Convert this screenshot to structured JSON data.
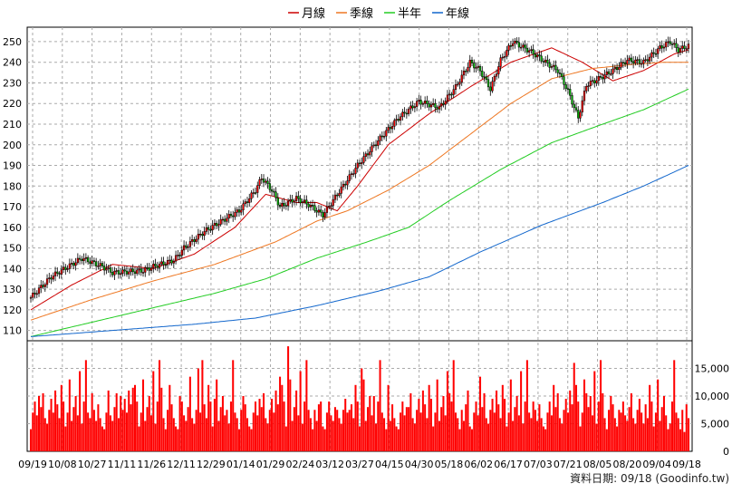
{
  "chart_data": {
    "type": "candlestick",
    "legend": [
      {
        "label": "月線",
        "color": "#cc0000"
      },
      {
        "label": "季線",
        "color": "#ee7722"
      },
      {
        "label": "半年",
        "color": "#22cc22"
      },
      {
        "label": "年線",
        "color": "#1166cc"
      }
    ],
    "price_axis": {
      "min": 105,
      "max": 257,
      "ticks": [
        110,
        120,
        130,
        140,
        150,
        160,
        170,
        180,
        190,
        200,
        210,
        220,
        230,
        240,
        250
      ]
    },
    "volume_axis": {
      "min": 0,
      "max": 20000,
      "ticks": [
        0,
        5000,
        10000,
        15000
      ],
      "tick_labels": [
        "0",
        "5,000",
        "10,000",
        "15,000"
      ]
    },
    "x_labels": [
      "09/19",
      "10/08",
      "10/27",
      "11/11",
      "11/26",
      "12/11",
      "12/29",
      "01/14",
      "01/29",
      "02/24",
      "03/12",
      "03/27",
      "04/15",
      "04/30",
      "05/18",
      "06/02",
      "06/17",
      "07/03",
      "07/21",
      "08/05",
      "08/20",
      "09/04",
      "09/18"
    ],
    "price_anchors": [
      [
        0,
        126
      ],
      [
        10,
        136
      ],
      [
        20,
        142
      ],
      [
        25,
        145
      ],
      [
        35,
        141
      ],
      [
        40,
        138
      ],
      [
        55,
        139
      ],
      [
        60,
        141
      ],
      [
        70,
        144
      ],
      [
        75,
        150
      ],
      [
        85,
        158
      ],
      [
        95,
        164
      ],
      [
        102,
        168
      ],
      [
        110,
        178
      ],
      [
        113,
        184
      ],
      [
        118,
        178
      ],
      [
        122,
        170
      ],
      [
        130,
        174
      ],
      [
        136,
        171
      ],
      [
        143,
        166
      ],
      [
        150,
        176
      ],
      [
        160,
        190
      ],
      [
        170,
        202
      ],
      [
        180,
        213
      ],
      [
        190,
        221
      ],
      [
        200,
        218
      ],
      [
        208,
        228
      ],
      [
        215,
        240
      ],
      [
        220,
        236
      ],
      [
        225,
        227
      ],
      [
        230,
        241
      ],
      [
        236,
        250
      ],
      [
        245,
        245
      ],
      [
        252,
        240
      ],
      [
        258,
        236
      ],
      [
        263,
        226
      ],
      [
        268,
        213
      ],
      [
        272,
        229
      ],
      [
        278,
        232
      ],
      [
        285,
        236
      ],
      [
        292,
        241
      ],
      [
        300,
        240
      ],
      [
        308,
        247
      ],
      [
        313,
        250
      ],
      [
        317,
        246
      ],
      [
        322,
        248
      ]
    ],
    "ma_month": [
      [
        0,
        120
      ],
      [
        20,
        132
      ],
      [
        40,
        142
      ],
      [
        60,
        140
      ],
      [
        80,
        147
      ],
      [
        100,
        160
      ],
      [
        115,
        176
      ],
      [
        130,
        172
      ],
      [
        140,
        172
      ],
      [
        150,
        168
      ],
      [
        160,
        180
      ],
      [
        175,
        200
      ],
      [
        195,
        215
      ],
      [
        215,
        228
      ],
      [
        235,
        240
      ],
      [
        255,
        247
      ],
      [
        270,
        240
      ],
      [
        285,
        231
      ],
      [
        300,
        236
      ],
      [
        315,
        244
      ],
      [
        322,
        246
      ]
    ],
    "ma_quarter": [
      [
        0,
        115
      ],
      [
        30,
        125
      ],
      [
        60,
        134
      ],
      [
        90,
        142
      ],
      [
        120,
        153
      ],
      [
        140,
        163
      ],
      [
        155,
        168
      ],
      [
        175,
        178
      ],
      [
        195,
        190
      ],
      [
        215,
        205
      ],
      [
        235,
        220
      ],
      [
        255,
        232
      ],
      [
        275,
        237
      ],
      [
        295,
        239
      ],
      [
        310,
        240
      ],
      [
        322,
        240
      ]
    ],
    "ma_half": [
      [
        0,
        107
      ],
      [
        30,
        114
      ],
      [
        60,
        121
      ],
      [
        90,
        128
      ],
      [
        115,
        135
      ],
      [
        140,
        145
      ],
      [
        165,
        153
      ],
      [
        185,
        160
      ],
      [
        205,
        173
      ],
      [
        230,
        188
      ],
      [
        255,
        201
      ],
      [
        280,
        210
      ],
      [
        300,
        217
      ],
      [
        322,
        227
      ]
    ],
    "ma_year": [
      [
        0,
        107
      ],
      [
        40,
        110
      ],
      [
        80,
        113
      ],
      [
        110,
        116
      ],
      [
        140,
        122
      ],
      [
        170,
        129
      ],
      [
        195,
        136
      ],
      [
        220,
        148
      ],
      [
        250,
        161
      ],
      [
        280,
        172
      ],
      [
        300,
        180
      ],
      [
        322,
        190
      ]
    ],
    "volume_seed": [
      4000,
      7000,
      9000,
      6500,
      5500,
      8000,
      10500,
      6000,
      5000,
      7500,
      9500,
      7000,
      11000,
      8500,
      6000,
      12000,
      9000,
      4500,
      7000,
      13000,
      5500,
      8000,
      10000,
      6500,
      14500,
      5000,
      9000,
      16500,
      7000,
      6000,
      4000,
      7500,
      5500,
      8500,
      6000,
      4500
    ],
    "volume_spikes": [
      [
        4,
        10000
      ],
      [
        30,
        10500
      ],
      [
        38,
        11000
      ],
      [
        44,
        10000
      ],
      [
        50,
        11500
      ],
      [
        64,
        11500
      ],
      [
        68,
        12000
      ],
      [
        73,
        10000
      ],
      [
        78,
        13500
      ],
      [
        82,
        15000
      ],
      [
        84,
        16500
      ],
      [
        90,
        9500
      ],
      [
        96,
        7500
      ],
      [
        104,
        10000
      ],
      [
        112,
        9500
      ],
      [
        122,
        13500
      ],
      [
        126,
        19000
      ],
      [
        130,
        11000
      ],
      [
        136,
        7500
      ],
      [
        142,
        9000
      ],
      [
        150,
        7500
      ],
      [
        156,
        7500
      ],
      [
        162,
        15000
      ],
      [
        168,
        10000
      ],
      [
        175,
        12000
      ],
      [
        184,
        8000
      ],
      [
        196,
        9500
      ],
      [
        205,
        10500
      ],
      [
        214,
        11000
      ],
      [
        220,
        13500
      ],
      [
        232,
        9500
      ],
      [
        246,
        9000
      ],
      [
        256,
        12000
      ],
      [
        266,
        16000
      ],
      [
        272,
        10500
      ],
      [
        280,
        10500
      ],
      [
        284,
        10000
      ],
      [
        288,
        7500
      ],
      [
        300,
        5000
      ],
      [
        312,
        4000
      ],
      [
        320,
        3500
      ]
    ]
  },
  "footer": {
    "source_label": "資料日期: 09/18",
    "site": "(Goodinfo.tw)"
  }
}
